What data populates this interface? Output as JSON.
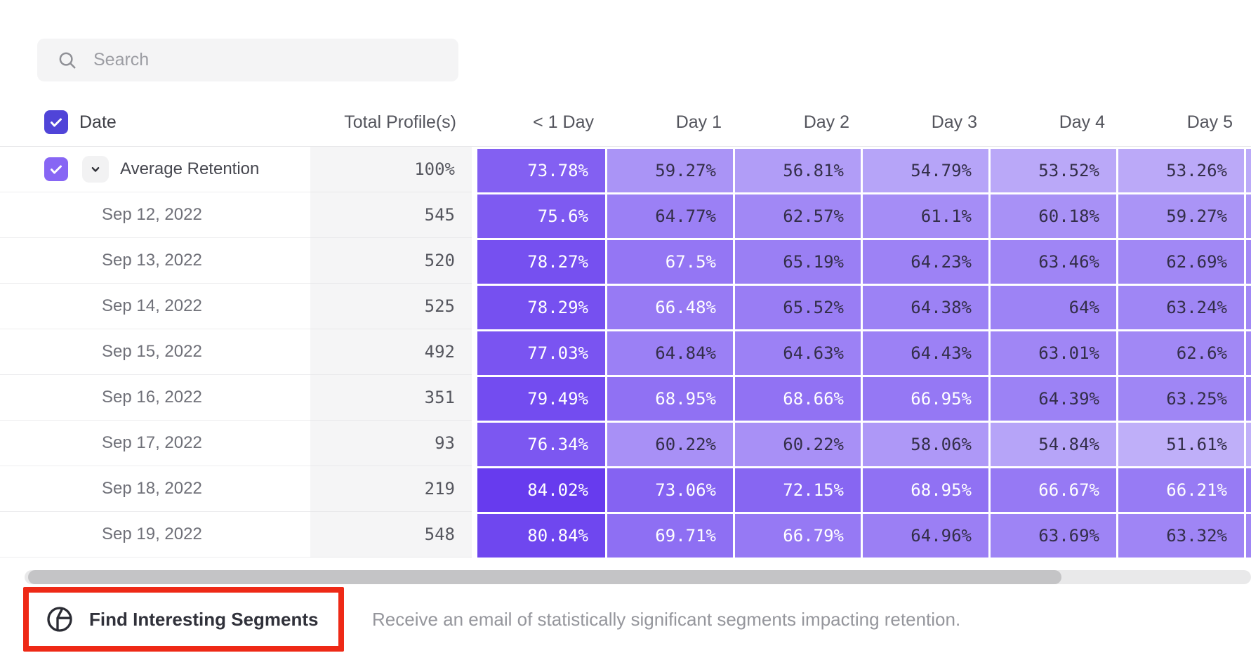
{
  "search": {
    "placeholder": "Search"
  },
  "table": {
    "columns": [
      "Date",
      "Total Profile(s)",
      "< 1 Day",
      "Day 1",
      "Day 2",
      "Day 3",
      "Day 4",
      "Day 5"
    ],
    "rows": [
      {
        "label": "Average Retention",
        "total": "100%",
        "expandable": true,
        "checked": true,
        "values": [
          "73.78%",
          "59.27%",
          "56.81%",
          "54.79%",
          "53.52%",
          "53.26%"
        ]
      },
      {
        "label": "Sep 12, 2022",
        "total": "545",
        "values": [
          "75.6%",
          "64.77%",
          "62.57%",
          "61.1%",
          "60.18%",
          "59.27%"
        ]
      },
      {
        "label": "Sep 13, 2022",
        "total": "520",
        "values": [
          "78.27%",
          "67.5%",
          "65.19%",
          "64.23%",
          "63.46%",
          "62.69%"
        ]
      },
      {
        "label": "Sep 14, 2022",
        "total": "525",
        "values": [
          "78.29%",
          "66.48%",
          "65.52%",
          "64.38%",
          "64%",
          "63.24%"
        ]
      },
      {
        "label": "Sep 15, 2022",
        "total": "492",
        "values": [
          "77.03%",
          "64.84%",
          "64.63%",
          "64.43%",
          "63.01%",
          "62.6%"
        ]
      },
      {
        "label": "Sep 16, 2022",
        "total": "351",
        "values": [
          "79.49%",
          "68.95%",
          "68.66%",
          "66.95%",
          "64.39%",
          "63.25%"
        ]
      },
      {
        "label": "Sep 17, 2022",
        "total": "93",
        "values": [
          "76.34%",
          "60.22%",
          "60.22%",
          "58.06%",
          "54.84%",
          "51.61%"
        ]
      },
      {
        "label": "Sep 18, 2022",
        "total": "219",
        "values": [
          "84.02%",
          "73.06%",
          "72.15%",
          "68.95%",
          "66.67%",
          "66.21%"
        ]
      },
      {
        "label": "Sep 19, 2022",
        "total": "548",
        "values": [
          "80.84%",
          "69.71%",
          "66.79%",
          "64.96%",
          "63.69%",
          "63.32%"
        ]
      }
    ]
  },
  "heatmap": {
    "min": 48,
    "max": 85,
    "white_text_threshold": 66,
    "light_color": "#c9bcfa",
    "dark_color": "#6438ee"
  },
  "footer": {
    "button_label": "Find Interesting Segments",
    "description": "Receive an email of statistically significant segments impacting retention."
  },
  "colors": {
    "header_checkbox": "#5044d8",
    "row_checkbox": "#8766f4",
    "highlight_red": "#ee2916",
    "total_column_bg": "#f5f5f6"
  }
}
